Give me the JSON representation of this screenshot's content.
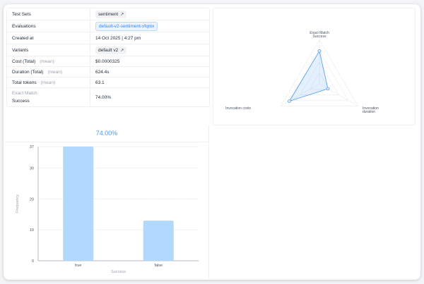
{
  "details": {
    "rows": [
      {
        "label": "Test Sets",
        "value": "sentiment",
        "type": "pill-link"
      },
      {
        "label": "Evaluations",
        "value": "default-v2-sentiment-vfqmx",
        "type": "pill-blue"
      },
      {
        "label": "Created at",
        "value": "14 Oct 2025 | 4:27 pm",
        "type": "text"
      },
      {
        "label": "Variants",
        "value": "default v2",
        "type": "pill-link"
      },
      {
        "label": "Cost (Total)",
        "suffix": "(mean)",
        "value": "$0.0000325",
        "type": "text"
      },
      {
        "label": "Duration (Total)",
        "suffix": "(mean)",
        "value": "624.4s",
        "type": "text"
      },
      {
        "label": "Total tokens",
        "suffix": "(mean)",
        "value": "63.1",
        "type": "text"
      },
      {
        "label": "Success",
        "prefix": "Exact Match",
        "value": "74.00%",
        "type": "text"
      }
    ]
  },
  "chart_data": [
    {
      "type": "radar",
      "axes": [
        "Exact Match Success",
        "Invocation duration",
        "Invocation costs"
      ],
      "values": [
        0.74,
        0.22,
        0.78
      ],
      "range": [
        0,
        1
      ],
      "color": "#4a9af0"
    },
    {
      "type": "bar",
      "title": "74.00%",
      "categories": [
        "true",
        "false"
      ],
      "values": [
        37,
        13
      ],
      "xlabel": "Success",
      "ylabel": "Frequency",
      "yticks": [
        0,
        10,
        20,
        30,
        37
      ],
      "ylim": [
        0,
        37
      ],
      "grid": true,
      "color": "#b3d8fd"
    }
  ]
}
